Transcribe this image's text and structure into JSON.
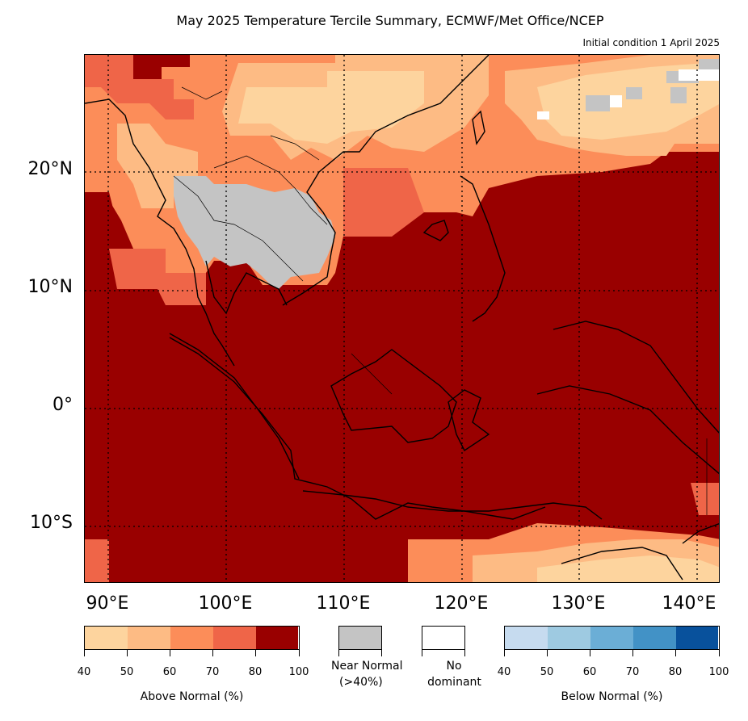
{
  "header": {
    "title": "May 2025 Temperature Tercile Summary, ECMWF/Met Office/NCEP",
    "subtitle": "Initial condition 1 April 2025"
  },
  "map": {
    "lat_labels": [
      "20°N",
      "10°N",
      "0°",
      "10°S"
    ],
    "lon_labels": [
      "90°E",
      "100°E",
      "110°E",
      "120°E",
      "130°E",
      "140°E"
    ],
    "region_bounds": {
      "lon_min": 88,
      "lon_max": 142,
      "lat_min": -15,
      "lat_max": 30
    },
    "gridlines": "dotted",
    "colors": {
      "above_40": "#fdd49e",
      "above_50": "#fdbb84",
      "above_60": "#fc8d59",
      "above_70": "#ef6548",
      "above_80": "#990000",
      "near_normal": "#c4c4c4",
      "no_dominant": "#ffffff",
      "below_40": "#c6dbef",
      "below_50": "#9ecae1",
      "below_60": "#6baed6",
      "below_70": "#4292c6",
      "below_80": "#08519c"
    }
  },
  "legend": {
    "above": {
      "title": "Above Normal (%)",
      "ticks": [
        "40",
        "50",
        "60",
        "70",
        "80",
        "100"
      ],
      "colors": [
        "#fdd49e",
        "#fdbb84",
        "#fc8d59",
        "#ef6548",
        "#990000"
      ]
    },
    "near_normal": {
      "label_line1": "Near Normal",
      "label_line2": "(>40%)",
      "color": "#c4c4c4"
    },
    "no_dominant": {
      "label_line1": "No",
      "label_line2": "dominant",
      "color": "#ffffff"
    },
    "below": {
      "title": "Below Normal (%)",
      "ticks": [
        "40",
        "50",
        "60",
        "70",
        "80",
        "100"
      ],
      "colors": [
        "#c6dbef",
        "#9ecae1",
        "#6baed6",
        "#4292c6",
        "#08519c"
      ]
    }
  }
}
